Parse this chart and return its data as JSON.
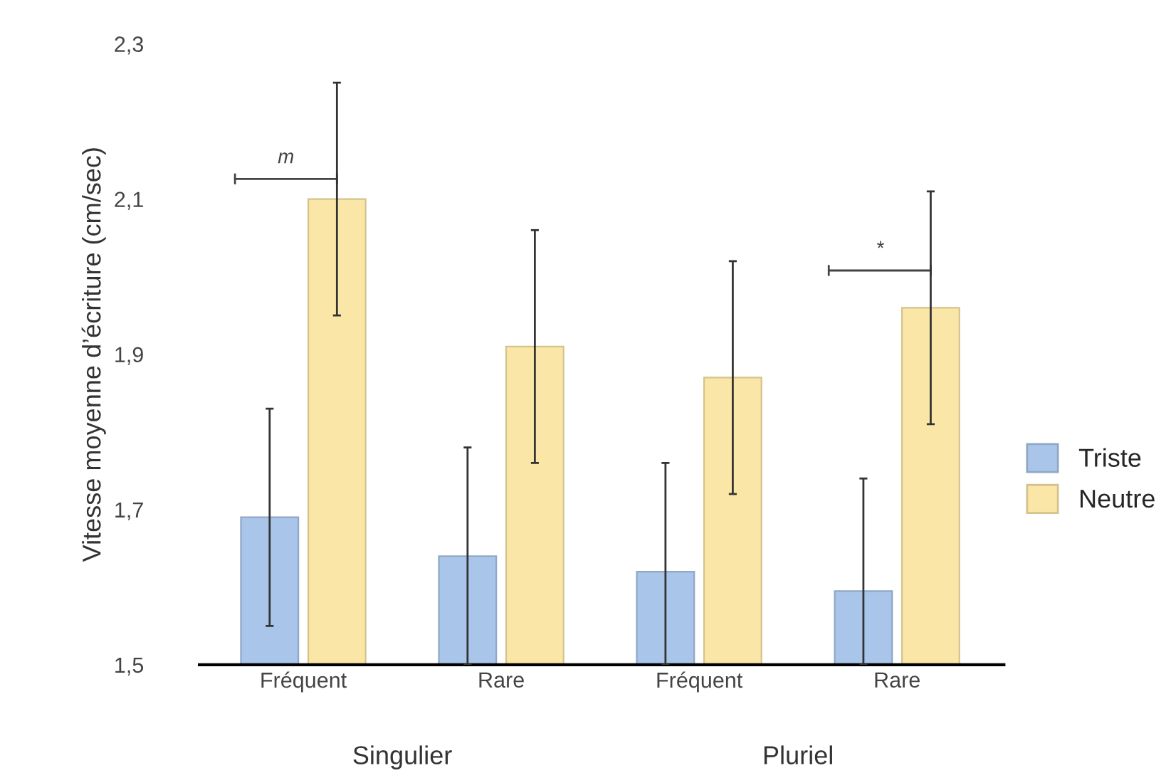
{
  "chart_data": {
    "type": "bar",
    "ylabel": "Vitesse moyenne d’écriture (cm/sec)",
    "categories": [
      "Fréquent",
      "Rare",
      "Fréquent",
      "Rare"
    ],
    "series": [
      {
        "name": "Triste",
        "color": "#a9c5ea",
        "values": [
          1.69,
          1.64,
          1.62,
          1.595
        ],
        "errors": [
          [
            1.55,
            1.83
          ],
          [
            1.5,
            1.78
          ],
          [
            1.5,
            1.76
          ],
          [
            1.5,
            1.74
          ]
        ]
      },
      {
        "name": "Neutre",
        "color": "#fae6a6",
        "values": [
          2.1,
          1.91,
          1.87,
          1.96
        ],
        "errors": [
          [
            1.95,
            2.25
          ],
          [
            1.76,
            2.06
          ],
          [
            1.72,
            2.02
          ],
          [
            1.81,
            2.11
          ]
        ]
      }
    ],
    "ylim": [
      1.5,
      2.3
    ],
    "yticks": [
      {
        "value": 1.5,
        "label": "1,5"
      },
      {
        "value": 1.7,
        "label": "1,7"
      },
      {
        "value": 1.9,
        "label": "1,9"
      },
      {
        "value": 2.1,
        "label": "2,1"
      },
      {
        "value": 2.3,
        "label": "2,3"
      }
    ],
    "annotations": [
      "Singulier",
      "Pluriel",
      "m",
      "*"
    ],
    "legend": "right",
    "grid": false
  }
}
